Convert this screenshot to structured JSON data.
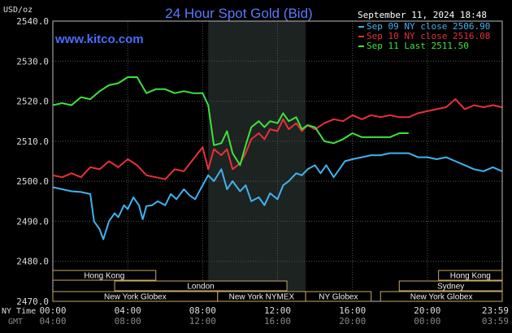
{
  "chart_data": {
    "type": "line",
    "title": "24 Hour Spot Gold (Bid)",
    "watermark": "www.kitco.com",
    "unit_label": "USD/oz",
    "timestamp": "September 11, 2024 18:48",
    "ylim": [
      2470,
      2540
    ],
    "y_ticks": [
      "2540.0",
      "2530.0",
      "2520.0",
      "2510.0",
      "2500.0",
      "2490.0",
      "2480.0",
      "2470.0"
    ],
    "x_ticks_ny": [
      "00:00",
      "04:00",
      "08:00",
      "12:00",
      "16:00",
      "20:00",
      "23:59"
    ],
    "x_ticks_gmt": [
      "04:00",
      "08:00",
      "12:00",
      "16:00",
      "20:00",
      "00:00",
      "03:59"
    ],
    "x_axis_labels": {
      "ny": "NY Time",
      "gmt": "GMT"
    },
    "x_hours": [
      0,
      4,
      8,
      12,
      16,
      20,
      23.98
    ],
    "shaded_region_hours": [
      8.3,
      13.5
    ],
    "grid": true,
    "legend_position": "top-right",
    "series": [
      {
        "name": "Sep 09 NY close 2506.90",
        "color": "#3fb3ee",
        "x": [
          0,
          0.5,
          1,
          1.5,
          2,
          2.2,
          2.5,
          2.7,
          3,
          3.3,
          3.5,
          3.8,
          4,
          4.3,
          4.6,
          4.8,
          5,
          5.3,
          5.6,
          6,
          6.3,
          6.6,
          7,
          7.3,
          7.6,
          8,
          8.3,
          8.6,
          9,
          9.3,
          9.6,
          10,
          10.3,
          10.6,
          11,
          11.3,
          11.6,
          12,
          12.3,
          12.6,
          13,
          13.3,
          13.6,
          14,
          14.3,
          14.6,
          15,
          15.3,
          15.6,
          16,
          16.5,
          17,
          17.5,
          18,
          18.5,
          19,
          19.5,
          20,
          20.5,
          21,
          21.5,
          22,
          22.5,
          23,
          23.5,
          23.98
        ],
        "y": [
          2498.5,
          2498,
          2497.5,
          2497.3,
          2496.8,
          2490,
          2488,
          2485.5,
          2490,
          2492,
          2491,
          2494,
          2493,
          2496,
          2494,
          2490.5,
          2493.8,
          2494,
          2495,
          2494,
          2496.8,
          2495.5,
          2498,
          2496.5,
          2495.5,
          2499,
          2501.5,
          2500,
          2503,
          2498,
          2500,
          2497.5,
          2499,
          2495,
          2496,
          2494,
          2497,
          2495.5,
          2499,
          2500,
          2502,
          2501.5,
          2503,
          2504,
          2502,
          2504,
          2501,
          2503,
          2505,
          2505.5,
          2506,
          2506.5,
          2506.5,
          2507,
          2507,
          2507,
          2506,
          2506,
          2505.5,
          2506,
          2505,
          2504,
          2503,
          2502.5,
          2503.5,
          2502.5
        ]
      },
      {
        "name": "Sep 10 NY close 2516.08",
        "color": "#e8303a",
        "x": [
          0,
          0.5,
          1,
          1.5,
          2,
          2.5,
          3,
          3.5,
          4,
          4.5,
          5,
          5.5,
          6,
          6.5,
          7,
          7.5,
          8,
          8.3,
          8.6,
          9,
          9.3,
          9.6,
          10,
          10.3,
          10.6,
          11,
          11.3,
          11.6,
          12,
          12.3,
          12.6,
          13,
          13.3,
          13.6,
          14,
          14.5,
          15,
          15.5,
          16,
          16.5,
          17,
          17.5,
          18,
          18.5,
          19,
          19.5,
          20,
          20.5,
          21,
          21.5,
          22,
          22.5,
          23,
          23.5,
          23.98
        ],
        "y": [
          2501.5,
          2501,
          2502,
          2501,
          2503.5,
          2503,
          2505,
          2503.5,
          2505.5,
          2504,
          2501.5,
          2501,
          2500.5,
          2503,
          2502.5,
          2505.5,
          2508.5,
          2503,
          2508,
          2506.5,
          2508,
          2503,
          2504.5,
          2507,
          2510.5,
          2512,
          2510.5,
          2513,
          2512.5,
          2515.5,
          2513,
          2514.5,
          2512.5,
          2514,
          2513,
          2514.5,
          2515.5,
          2515,
          2516.5,
          2515.5,
          2516.5,
          2516,
          2516.5,
          2516,
          2516,
          2517,
          2517.5,
          2518,
          2518.5,
          2520.5,
          2518,
          2519,
          2518.5,
          2519,
          2518.5
        ]
      },
      {
        "name": "Sep 11 Last 2511.50",
        "color": "#3ce33c",
        "x": [
          0,
          0.5,
          1,
          1.5,
          2,
          2.5,
          3,
          3.5,
          4,
          4.5,
          5,
          5.5,
          6,
          6.5,
          7,
          7.5,
          8,
          8.3,
          8.6,
          9,
          9.3,
          9.6,
          10,
          10.3,
          10.6,
          11,
          11.3,
          11.6,
          12,
          12.3,
          12.6,
          13,
          13.3,
          13.6,
          14,
          14.5,
          15,
          15.5,
          16,
          16.5,
          17,
          17.5,
          18,
          18.5,
          19
        ],
        "y": [
          2519,
          2519.5,
          2519,
          2521,
          2520.5,
          2522.5,
          2524,
          2524.5,
          2526,
          2526,
          2522,
          2523,
          2523,
          2522,
          2522.5,
          2522,
          2522,
          2519,
          2509,
          2509.5,
          2512.5,
          2507,
          2504,
          2509,
          2513.5,
          2515,
          2513.5,
          2515,
          2514.5,
          2517,
          2515,
          2516,
          2513,
          2514,
          2513.5,
          2510,
          2509.5,
          2510.5,
          2512,
          2511,
          2511,
          2511,
          2511,
          2512,
          2512
        ]
      }
    ],
    "sessions": {
      "hong_kong_1": "Hong Kong",
      "london": "London",
      "new_york_globex_1": "New York Globex",
      "new_york_nymex": "New York NYMEX",
      "ny_globex": "NY Globex",
      "hong_kong_2": "Hong Kong",
      "sydney": "Sydney",
      "new_york_globex_2": "New York Globex"
    }
  }
}
